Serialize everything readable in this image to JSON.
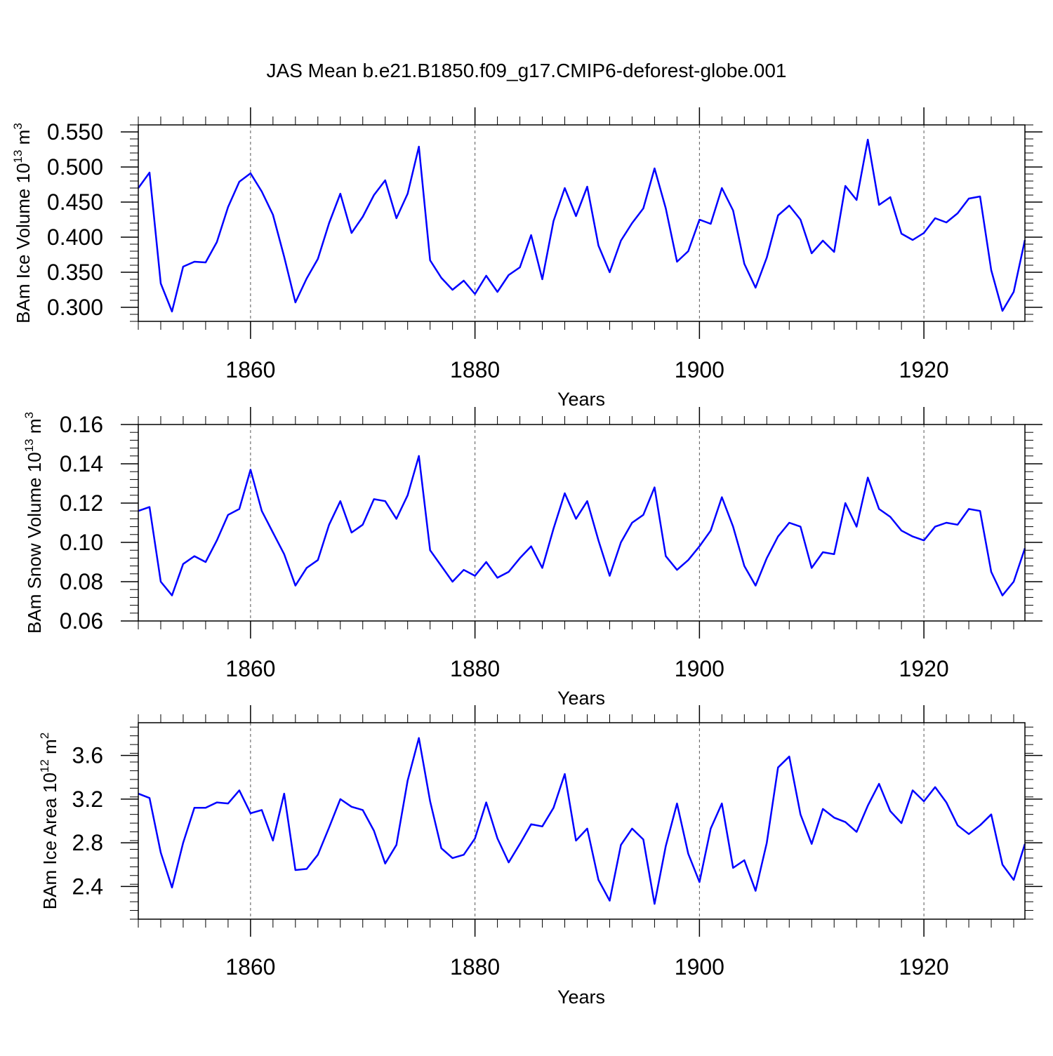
{
  "title": "JAS Mean b.e21.B1850.f09_g17.CMIP6-deforest-globe.001",
  "line_color": "#0000ff",
  "chart_data": [
    {
      "type": "line",
      "ylabel": "BAm Ice Volume 10",
      "ylabel_exp": "13",
      "ylabel_unit": " m",
      "ylabel_unit_exp": "3",
      "xlabel": "Years",
      "xlim": [
        1850,
        1929
      ],
      "ylim": [
        0.28,
        0.56
      ],
      "yticks": [
        "0.550",
        "0.500",
        "0.450",
        "0.400",
        "0.350",
        "0.300"
      ],
      "xticks": [
        "1860",
        "1880",
        "1900",
        "1920"
      ],
      "x": [
        1850,
        1851,
        1852,
        1853,
        1854,
        1855,
        1856,
        1857,
        1858,
        1859,
        1860,
        1861,
        1862,
        1863,
        1864,
        1865,
        1866,
        1867,
        1868,
        1869,
        1870,
        1871,
        1872,
        1873,
        1874,
        1875,
        1876,
        1877,
        1878,
        1879,
        1880,
        1881,
        1882,
        1883,
        1884,
        1885,
        1886,
        1887,
        1888,
        1889,
        1890,
        1891,
        1892,
        1893,
        1894,
        1895,
        1896,
        1897,
        1898,
        1899,
        1900,
        1901,
        1902,
        1903,
        1904,
        1905,
        1906,
        1907,
        1908,
        1909,
        1910,
        1911,
        1912,
        1913,
        1914,
        1915,
        1916,
        1917,
        1918,
        1919,
        1920,
        1921,
        1922,
        1923,
        1924,
        1925,
        1926,
        1927,
        1928,
        1929
      ],
      "values": [
        0.47,
        0.492,
        0.334,
        0.294,
        0.358,
        0.365,
        0.364,
        0.393,
        0.443,
        0.479,
        0.491,
        0.465,
        0.432,
        0.372,
        0.307,
        0.341,
        0.369,
        0.42,
        0.462,
        0.406,
        0.429,
        0.46,
        0.481,
        0.427,
        0.462,
        0.529,
        0.367,
        0.342,
        0.325,
        0.338,
        0.319,
        0.345,
        0.322,
        0.346,
        0.357,
        0.403,
        0.34,
        0.423,
        0.47,
        0.43,
        0.472,
        0.388,
        0.35,
        0.395,
        0.42,
        0.441,
        0.498,
        0.441,
        0.365,
        0.38,
        0.425,
        0.419,
        0.47,
        0.438,
        0.362,
        0.328,
        0.371,
        0.431,
        0.445,
        0.425,
        0.377,
        0.395,
        0.379,
        0.473,
        0.453,
        0.539,
        0.446,
        0.457,
        0.405,
        0.396,
        0.406,
        0.427,
        0.421,
        0.434,
        0.455,
        0.458,
        0.353,
        0.295,
        0.322,
        0.396
      ]
    },
    {
      "type": "line",
      "ylabel": "BAm Snow Volume 10",
      "ylabel_exp": "13",
      "ylabel_unit": " m",
      "ylabel_unit_exp": "3",
      "xlabel": "Years",
      "xlim": [
        1850,
        1929
      ],
      "ylim": [
        0.06,
        0.16
      ],
      "yticks": [
        "0.16",
        "0.14",
        "0.12",
        "0.10",
        "0.08",
        "0.06"
      ],
      "xticks": [
        "1860",
        "1880",
        "1900",
        "1920"
      ],
      "x": [
        1850,
        1851,
        1852,
        1853,
        1854,
        1855,
        1856,
        1857,
        1858,
        1859,
        1860,
        1861,
        1862,
        1863,
        1864,
        1865,
        1866,
        1867,
        1868,
        1869,
        1870,
        1871,
        1872,
        1873,
        1874,
        1875,
        1876,
        1877,
        1878,
        1879,
        1880,
        1881,
        1882,
        1883,
        1884,
        1885,
        1886,
        1887,
        1888,
        1889,
        1890,
        1891,
        1892,
        1893,
        1894,
        1895,
        1896,
        1897,
        1898,
        1899,
        1900,
        1901,
        1902,
        1903,
        1904,
        1905,
        1906,
        1907,
        1908,
        1909,
        1910,
        1911,
        1912,
        1913,
        1914,
        1915,
        1916,
        1917,
        1918,
        1919,
        1920,
        1921,
        1922,
        1923,
        1924,
        1925,
        1926,
        1927,
        1928,
        1929
      ],
      "values": [
        0.116,
        0.118,
        0.08,
        0.073,
        0.089,
        0.093,
        0.09,
        0.101,
        0.114,
        0.117,
        0.137,
        0.116,
        0.105,
        0.094,
        0.078,
        0.087,
        0.091,
        0.109,
        0.121,
        0.105,
        0.109,
        0.122,
        0.121,
        0.112,
        0.124,
        0.144,
        0.096,
        0.088,
        0.08,
        0.086,
        0.083,
        0.09,
        0.082,
        0.085,
        0.092,
        0.098,
        0.087,
        0.107,
        0.125,
        0.112,
        0.121,
        0.101,
        0.083,
        0.1,
        0.11,
        0.114,
        0.128,
        0.093,
        0.086,
        0.091,
        0.098,
        0.106,
        0.123,
        0.108,
        0.088,
        0.078,
        0.092,
        0.103,
        0.11,
        0.108,
        0.087,
        0.095,
        0.094,
        0.12,
        0.108,
        0.133,
        0.117,
        0.113,
        0.106,
        0.103,
        0.101,
        0.108,
        0.11,
        0.109,
        0.117,
        0.116,
        0.085,
        0.073,
        0.08,
        0.097
      ]
    },
    {
      "type": "line",
      "ylabel": "BAm Ice Area 10",
      "ylabel_exp": "12",
      "ylabel_unit": " m",
      "ylabel_unit_exp": "2",
      "xlabel": "Years",
      "xlim": [
        1850,
        1929
      ],
      "ylim": [
        2.1,
        3.9
      ],
      "yticks": [
        "3.6",
        "3.2",
        "2.8",
        "2.4"
      ],
      "xticks": [
        "1860",
        "1880",
        "1900",
        "1920"
      ],
      "x": [
        1850,
        1851,
        1852,
        1853,
        1854,
        1855,
        1856,
        1857,
        1858,
        1859,
        1860,
        1861,
        1862,
        1863,
        1864,
        1865,
        1866,
        1867,
        1868,
        1869,
        1870,
        1871,
        1872,
        1873,
        1874,
        1875,
        1876,
        1877,
        1878,
        1879,
        1880,
        1881,
        1882,
        1883,
        1884,
        1885,
        1886,
        1887,
        1888,
        1889,
        1890,
        1891,
        1892,
        1893,
        1894,
        1895,
        1896,
        1897,
        1898,
        1899,
        1900,
        1901,
        1902,
        1903,
        1904,
        1905,
        1906,
        1907,
        1908,
        1909,
        1910,
        1911,
        1912,
        1913,
        1914,
        1915,
        1916,
        1917,
        1918,
        1919,
        1920,
        1921,
        1922,
        1923,
        1924,
        1925,
        1926,
        1927,
        1928,
        1929
      ],
      "values": [
        3.25,
        3.21,
        2.71,
        2.39,
        2.8,
        3.12,
        3.12,
        3.17,
        3.16,
        3.28,
        3.07,
        3.1,
        2.82,
        3.25,
        2.55,
        2.56,
        2.69,
        2.94,
        3.2,
        3.13,
        3.1,
        2.91,
        2.61,
        2.78,
        3.37,
        3.76,
        3.18,
        2.75,
        2.66,
        2.69,
        2.84,
        3.17,
        2.84,
        2.62,
        2.79,
        2.97,
        2.95,
        3.12,
        3.43,
        2.82,
        2.93,
        2.46,
        2.27,
        2.78,
        2.93,
        2.83,
        2.24,
        2.77,
        3.16,
        2.7,
        2.44,
        2.93,
        3.16,
        2.57,
        2.64,
        2.36,
        2.8,
        3.49,
        3.59,
        3.06,
        2.79,
        3.11,
        3.03,
        2.99,
        2.9,
        3.14,
        3.34,
        3.09,
        2.98,
        3.28,
        3.18,
        3.31,
        3.17,
        2.96,
        2.88,
        2.96,
        3.06,
        2.6,
        2.46,
        2.79
      ]
    }
  ]
}
